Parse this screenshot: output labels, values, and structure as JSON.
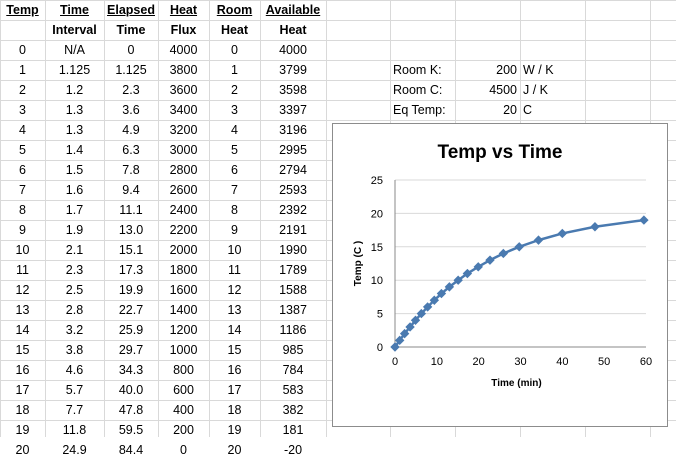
{
  "sheet": {
    "header1": [
      "Temp",
      "Time",
      "Elapsed",
      "Heat",
      "Room",
      "Available"
    ],
    "header2": [
      "",
      "Interval",
      "Time",
      "Flux",
      "Heat",
      "Heat"
    ],
    "rows": [
      [
        "0",
        "N/A",
        "0",
        "4000",
        "0",
        "4000"
      ],
      [
        "1",
        "1.125",
        "1.125",
        "3800",
        "1",
        "3799"
      ],
      [
        "2",
        "1.2",
        "2.3",
        "3600",
        "2",
        "3598"
      ],
      [
        "3",
        "1.3",
        "3.6",
        "3400",
        "3",
        "3397"
      ],
      [
        "4",
        "1.3",
        "4.9",
        "3200",
        "4",
        "3196"
      ],
      [
        "5",
        "1.4",
        "6.3",
        "3000",
        "5",
        "2995"
      ],
      [
        "6",
        "1.5",
        "7.8",
        "2800",
        "6",
        "2794"
      ],
      [
        "7",
        "1.6",
        "9.4",
        "2600",
        "7",
        "2593"
      ],
      [
        "8",
        "1.7",
        "11.1",
        "2400",
        "8",
        "2392"
      ],
      [
        "9",
        "1.9",
        "13.0",
        "2200",
        "9",
        "2191"
      ],
      [
        "10",
        "2.1",
        "15.1",
        "2000",
        "10",
        "1990"
      ],
      [
        "11",
        "2.3",
        "17.3",
        "1800",
        "11",
        "1789"
      ],
      [
        "12",
        "2.5",
        "19.9",
        "1600",
        "12",
        "1588"
      ],
      [
        "13",
        "2.8",
        "22.7",
        "1400",
        "13",
        "1387"
      ],
      [
        "14",
        "3.2",
        "25.9",
        "1200",
        "14",
        "1186"
      ],
      [
        "15",
        "3.8",
        "29.7",
        "1000",
        "15",
        "985"
      ],
      [
        "16",
        "4.6",
        "34.3",
        "800",
        "16",
        "784"
      ],
      [
        "17",
        "5.7",
        "40.0",
        "600",
        "17",
        "583"
      ],
      [
        "18",
        "7.7",
        "47.8",
        "400",
        "18",
        "382"
      ],
      [
        "19",
        "11.8",
        "59.5",
        "200",
        "19",
        "181"
      ],
      [
        "20",
        "24.9",
        "84.4",
        "0",
        "20",
        "-20"
      ]
    ],
    "params": [
      {
        "label": "Room K:",
        "value": "200",
        "unit": "W / K"
      },
      {
        "label": "Room C:",
        "value": "4500",
        "unit": "J / K"
      },
      {
        "label": "Eq Temp:",
        "value": "20",
        "unit": "C"
      }
    ]
  },
  "chart_data": {
    "type": "line",
    "title": "Temp vs Time",
    "xlabel": "Time (min)",
    "ylabel": "Temp (C )",
    "xlim": [
      0,
      60
    ],
    "ylim": [
      0,
      25
    ],
    "xticks": [
      "0",
      "10",
      "20",
      "30",
      "40",
      "50",
      "60"
    ],
    "yticks": [
      "0",
      "5",
      "10",
      "15",
      "20",
      "25"
    ],
    "grid": "horizontal",
    "legend": "none",
    "color": "#4a7ab0",
    "x": [
      0,
      1.125,
      2.3,
      3.6,
      4.9,
      6.3,
      7.8,
      9.4,
      11.1,
      13.0,
      15.1,
      17.3,
      19.9,
      22.7,
      25.9,
      29.7,
      34.3,
      40.0,
      47.8,
      59.5
    ],
    "y": [
      0,
      1,
      2,
      3,
      4,
      5,
      6,
      7,
      8,
      9,
      10,
      11,
      12,
      13,
      14,
      15,
      16,
      17,
      18,
      19
    ]
  }
}
